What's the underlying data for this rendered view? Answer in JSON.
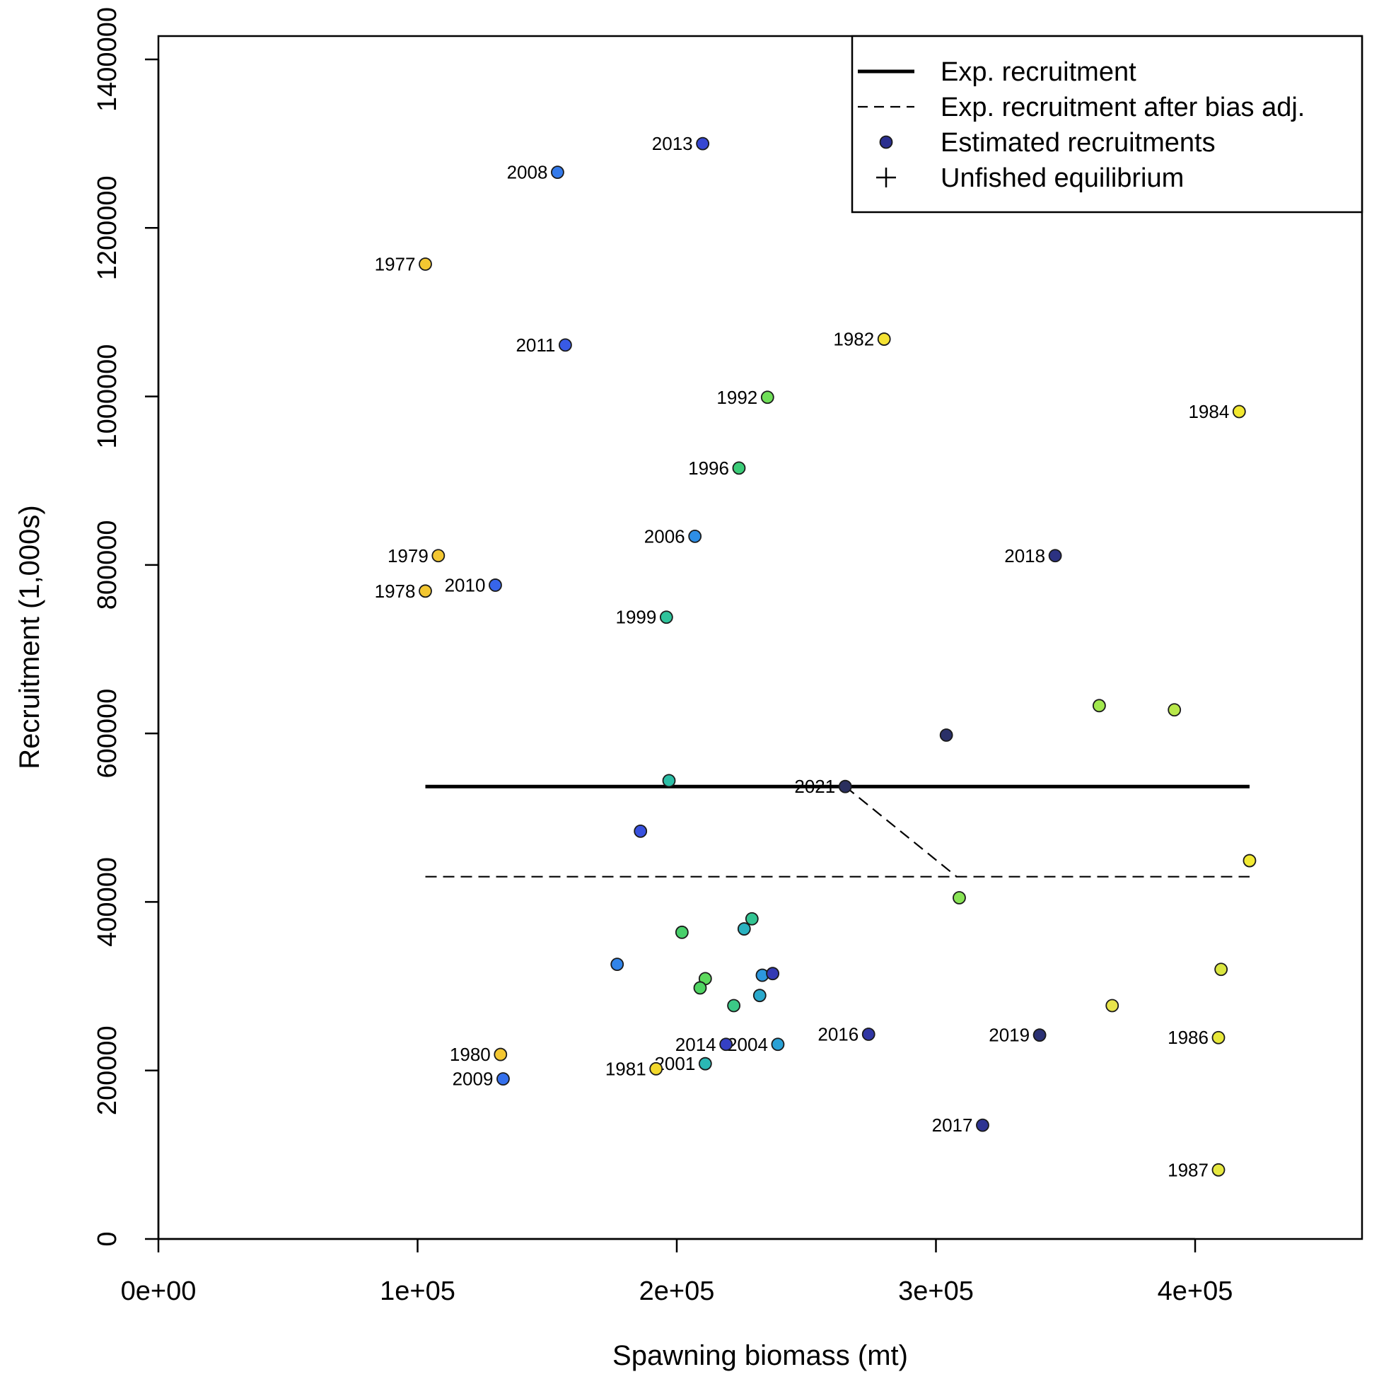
{
  "chart_data": {
    "type": "scatter",
    "xlabel": "Spawning biomass (mt)",
    "ylabel": "Recruitment (1,000s)",
    "xlim": [
      0,
      460000
    ],
    "ylim": [
      0,
      1400000
    ],
    "x_ticks": [
      {
        "value": 0,
        "label": "0e+00"
      },
      {
        "value": 100000,
        "label": "1e+05"
      },
      {
        "value": 200000,
        "label": "2e+05"
      },
      {
        "value": 300000,
        "label": "3e+05"
      },
      {
        "value": 400000,
        "label": "4e+05"
      }
    ],
    "y_ticks": [
      {
        "value": 0,
        "label": "0"
      },
      {
        "value": 200000,
        "label": "200000"
      },
      {
        "value": 400000,
        "label": "400000"
      },
      {
        "value": 600000,
        "label": "600000"
      },
      {
        "value": 800000,
        "label": "800000"
      },
      {
        "value": 1000000,
        "label": "1000000"
      },
      {
        "value": 1200000,
        "label": "1200000"
      },
      {
        "value": 1400000,
        "label": "1400000"
      }
    ],
    "grid": false,
    "legend_position": "top-right",
    "legend": [
      {
        "label": "Exp. recruitment",
        "symbol": "solid-line"
      },
      {
        "label": "Exp. recruitment after bias adj.",
        "symbol": "dashed-line"
      },
      {
        "label": "Estimated recruitments",
        "symbol": "circle",
        "color": "#2b2f8f"
      },
      {
        "label": "Unfished equilibrium",
        "symbol": "plus"
      }
    ],
    "lines": [
      {
        "name": "Exp. recruitment",
        "style": "solid",
        "points": [
          [
            103000,
            537000
          ],
          [
            421000,
            537000
          ]
        ]
      },
      {
        "name": "Exp. recruitment after bias adj.",
        "style": "dashed",
        "points": [
          [
            103000,
            430000
          ],
          [
            421000,
            430000
          ]
        ]
      },
      {
        "style": "dashed",
        "points": [
          [
            265000,
            537000
          ],
          [
            308000,
            430000
          ]
        ]
      }
    ],
    "series": [
      {
        "name": "Estimated recruitments",
        "points": [
          {
            "x": 103000,
            "y": 1157000,
            "label": "1977",
            "color": "#f3c731"
          },
          {
            "x": 103000,
            "y": 769000,
            "label": "1978",
            "color": "#f3c731"
          },
          {
            "x": 108000,
            "y": 811000,
            "label": "1979",
            "color": "#f3c731"
          },
          {
            "x": 132000,
            "y": 219000,
            "label": "1980",
            "color": "#f3c731"
          },
          {
            "x": 192000,
            "y": 202000,
            "label": "1981",
            "color": "#f2d82c"
          },
          {
            "x": 280000,
            "y": 1068000,
            "label": "1982",
            "color": "#f4e233"
          },
          {
            "x": 417000,
            "y": 982000,
            "label": "1984",
            "color": "#f2e830"
          },
          {
            "x": 421000,
            "y": 449000,
            "label": "",
            "color": "#f2ea33"
          },
          {
            "x": 409000,
            "y": 239000,
            "label": "1986",
            "color": "#e7e83a"
          },
          {
            "x": 409000,
            "y": 82000,
            "label": "1987",
            "color": "#e6e840"
          },
          {
            "x": 410000,
            "y": 320000,
            "label": "",
            "color": "#dae640"
          },
          {
            "x": 368000,
            "y": 277000,
            "label": "",
            "color": "#e8e44a"
          },
          {
            "x": 392000,
            "y": 628000,
            "label": "",
            "color": "#b8e84a"
          },
          {
            "x": 363000,
            "y": 633000,
            "label": "",
            "color": "#a1e84e"
          },
          {
            "x": 309000,
            "y": 405000,
            "label": "",
            "color": "#88e355"
          },
          {
            "x": 235000,
            "y": 999000,
            "label": "1992",
            "color": "#6fdf58"
          },
          {
            "x": 211000,
            "y": 309000,
            "label": "",
            "color": "#5cd95c"
          },
          {
            "x": 209000,
            "y": 298000,
            "label": "",
            "color": "#4fd462"
          },
          {
            "x": 202000,
            "y": 364000,
            "label": "",
            "color": "#48cf6a"
          },
          {
            "x": 224000,
            "y": 915000,
            "label": "1996",
            "color": "#3ccc78"
          },
          {
            "x": 222000,
            "y": 277000,
            "label": "",
            "color": "#3bc987"
          },
          {
            "x": 229000,
            "y": 380000,
            "label": "",
            "color": "#33c492"
          },
          {
            "x": 196000,
            "y": 738000,
            "label": "1999",
            "color": "#2fc39b"
          },
          {
            "x": 197000,
            "y": 544000,
            "label": "",
            "color": "#2cbea6"
          },
          {
            "x": 211000,
            "y": 208000,
            "label": "2001",
            "color": "#2ab8b4"
          },
          {
            "x": 226000,
            "y": 368000,
            "label": "",
            "color": "#2ab2c0"
          },
          {
            "x": 232000,
            "y": 289000,
            "label": "",
            "color": "#2aa9cc"
          },
          {
            "x": 239000,
            "y": 231000,
            "label": "2004",
            "color": "#2aa1d6"
          },
          {
            "x": 233000,
            "y": 313000,
            "label": "",
            "color": "#2c97de"
          },
          {
            "x": 207000,
            "y": 834000,
            "label": "2006",
            "color": "#2e8ee5"
          },
          {
            "x": 177000,
            "y": 326000,
            "label": "",
            "color": "#3184e9"
          },
          {
            "x": 154000,
            "y": 1266000,
            "label": "2008",
            "color": "#347aeb"
          },
          {
            "x": 133000,
            "y": 190000,
            "label": "2009",
            "color": "#3570ec"
          },
          {
            "x": 130000,
            "y": 776000,
            "label": "2010",
            "color": "#3765eb"
          },
          {
            "x": 157000,
            "y": 1061000,
            "label": "2011",
            "color": "#385ae6"
          },
          {
            "x": 186000,
            "y": 484000,
            "label": "",
            "color": "#3851de"
          },
          {
            "x": 210000,
            "y": 1300000,
            "label": "2013",
            "color": "#3747d2"
          },
          {
            "x": 219000,
            "y": 231000,
            "label": "2014",
            "color": "#3540c4"
          },
          {
            "x": 237000,
            "y": 315000,
            "label": "",
            "color": "#333ab4"
          },
          {
            "x": 274000,
            "y": 243000,
            "label": "2016",
            "color": "#3036a4"
          },
          {
            "x": 318000,
            "y": 135000,
            "label": "2017",
            "color": "#2e3492"
          },
          {
            "x": 346000,
            "y": 811000,
            "label": "2018",
            "color": "#2c3282"
          },
          {
            "x": 340000,
            "y": 242000,
            "label": "2019",
            "color": "#2b3174"
          },
          {
            "x": 304000,
            "y": 598000,
            "label": "",
            "color": "#2a3068"
          },
          {
            "x": 265000,
            "y": 537000,
            "label": "2021",
            "color": "#2a2f5e"
          }
        ]
      }
    ]
  }
}
